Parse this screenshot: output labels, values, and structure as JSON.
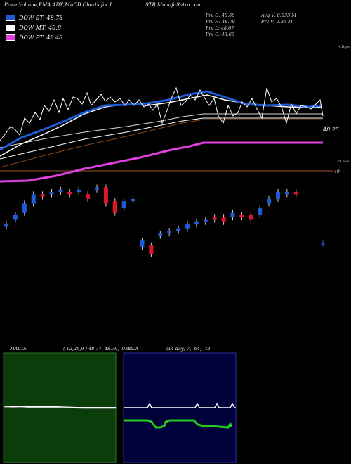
{
  "header": {
    "title_left": "Price,Volume,EMA,ADX,MACD Charts for I",
    "title_right": "STB MunafaSutra.com"
  },
  "legend": [
    {
      "label": "DOW ST: 48.78",
      "color": "#1f5bd6"
    },
    {
      "label": "DOW MT: 48.8",
      "color": "#ffffff"
    },
    {
      "label": "DOW PT: 48.48",
      "color": "#e040e0"
    }
  ],
  "info": {
    "prev_open": "Prv  O: 48.68",
    "prev_high": "Prv  H: 48.70",
    "prev_low": "Prv  L: 48.67",
    "prev_close": "Prv  C: 48.68",
    "avg_volume": "Avg V: 0.033  M",
    "prev_volume": "Prv  V: 0.36  M"
  },
  "side_labels": {
    "top": "<Tops",
    "low": "<Lows",
    "price_last": "48.25",
    "price_ref": "49"
  },
  "macd": {
    "label": "MACD:",
    "values": "( 12,26,9 ) 48.77,  48.79,  -0.02"
  },
  "adx": {
    "label": "ADX",
    "values": "(14  day) 7,  -64,  -73"
  },
  "colors": {
    "up": "#e0162a",
    "down": "#1f5bd6",
    "ema_short": "#1f5bd6",
    "ema_mid": "#ffffff",
    "ema_long": "#e040e0",
    "support": "#a0522d",
    "macd_bg": "#0a3d0a",
    "adx_bg": "#00003a",
    "adx_line": "#22cc22"
  },
  "chart_data": {
    "type": "candlestick",
    "candles": [
      {
        "dir": "down",
        "o": 48.34,
        "c": 48.35
      },
      {
        "dir": "down",
        "o": 48.37,
        "c": 48.39
      },
      {
        "dir": "down",
        "o": 48.4,
        "c": 48.44
      },
      {
        "dir": "down",
        "o": 48.44,
        "c": 48.48
      },
      {
        "dir": "up",
        "o": 48.47,
        "c": 48.48
      },
      {
        "dir": "down",
        "o": 48.48,
        "c": 48.49
      },
      {
        "dir": "down",
        "o": 48.49,
        "c": 48.5
      },
      {
        "dir": "up",
        "o": 48.48,
        "c": 48.49
      },
      {
        "dir": "down",
        "o": 48.49,
        "c": 48.5
      },
      {
        "dir": "up",
        "o": 48.46,
        "c": 48.48
      },
      {
        "dir": "down",
        "o": 48.5,
        "c": 48.51
      },
      {
        "dir": "up",
        "o": 48.44,
        "c": 48.51
      },
      {
        "dir": "up",
        "o": 48.4,
        "c": 48.45
      },
      {
        "dir": "down",
        "o": 48.42,
        "c": 48.45
      },
      {
        "dir": "down",
        "o": 48.45,
        "c": 48.46
      },
      {
        "dir": "down",
        "o": 48.25,
        "c": 48.28
      },
      {
        "dir": "up",
        "o": 48.22,
        "c": 48.26
      },
      {
        "dir": "down",
        "o": 48.3,
        "c": 48.31
      },
      {
        "dir": "down",
        "o": 48.31,
        "c": 48.32
      },
      {
        "dir": "down",
        "o": 48.32,
        "c": 48.33
      },
      {
        "dir": "down",
        "o": 48.33,
        "c": 48.35
      },
      {
        "dir": "down",
        "o": 48.35,
        "c": 48.36
      },
      {
        "dir": "down",
        "o": 48.36,
        "c": 48.37
      },
      {
        "dir": "up",
        "o": 48.37,
        "c": 48.38
      },
      {
        "dir": "up",
        "o": 48.36,
        "c": 48.38
      },
      {
        "dir": "down",
        "o": 48.38,
        "c": 48.4
      },
      {
        "dir": "up",
        "o": 48.38,
        "c": 48.39
      },
      {
        "dir": "up",
        "o": 48.37,
        "c": 48.39
      },
      {
        "dir": "down",
        "o": 48.39,
        "c": 48.42
      },
      {
        "dir": "down",
        "o": 48.44,
        "c": 48.46
      },
      {
        "dir": "down",
        "o": 48.46,
        "c": 48.49
      },
      {
        "dir": "down",
        "o": 48.48,
        "c": 48.49
      },
      {
        "dir": "up",
        "o": 48.48,
        "c": 48.49
      }
    ]
  }
}
